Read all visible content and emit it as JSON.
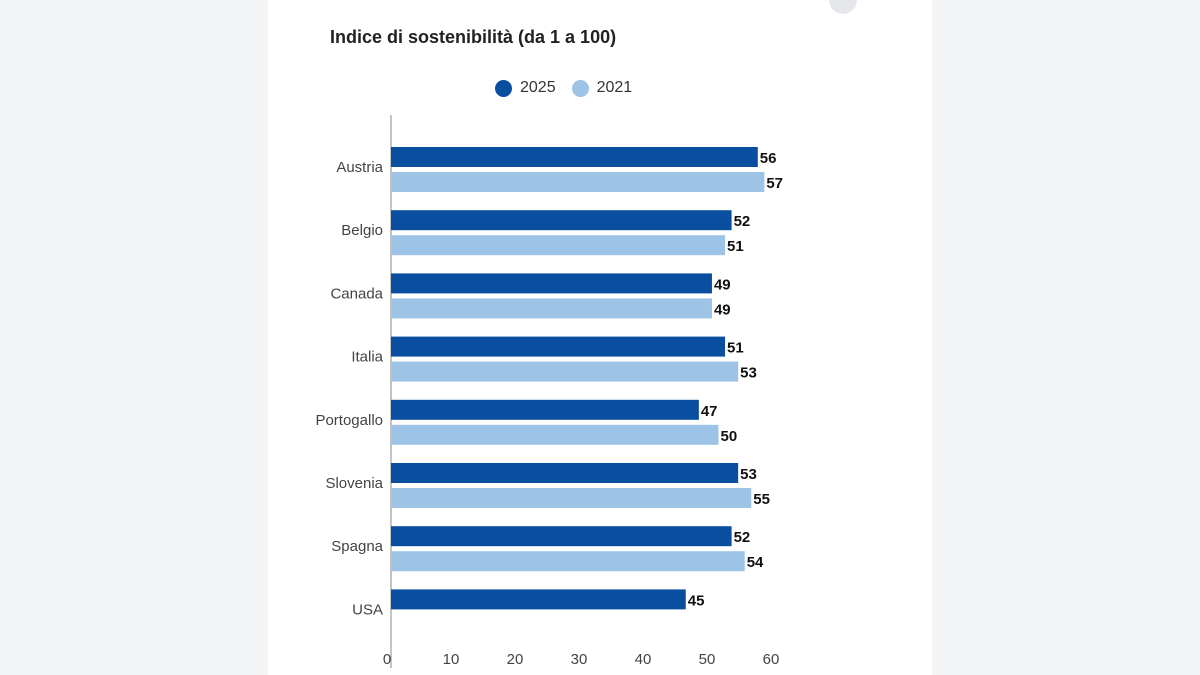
{
  "chart_data": {
    "type": "bar",
    "orientation": "horizontal",
    "title": "Indice di sostenibilità (da 1 a 100)",
    "categories": [
      "Austria",
      "Belgio",
      "Canada",
      "Italia",
      "Portogallo",
      "Slovenia",
      "Spagna",
      "USA"
    ],
    "series": [
      {
        "name": "2025",
        "color": "#0a4ea0",
        "values": [
          56,
          52,
          49,
          51,
          47,
          53,
          52,
          45
        ]
      },
      {
        "name": "2021",
        "color": "#9dc3e6",
        "values": [
          57,
          51,
          49,
          53,
          50,
          55,
          54,
          null
        ]
      }
    ],
    "xlim": [
      0,
      60
    ],
    "xticks": [
      "0",
      "10",
      "20",
      "30",
      "40",
      "50",
      "60"
    ],
    "legend_position": "top-center",
    "grid": false
  }
}
